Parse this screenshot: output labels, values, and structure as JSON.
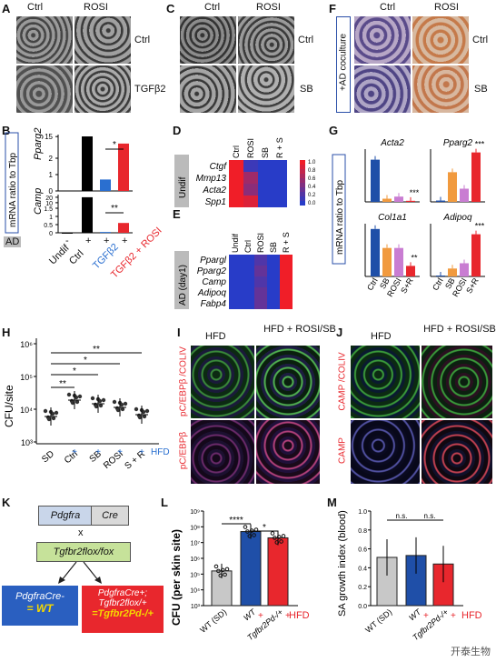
{
  "panel_letters": [
    "A",
    "B",
    "C",
    "D",
    "E",
    "F",
    "G",
    "H",
    "I",
    "J",
    "K",
    "L",
    "M"
  ],
  "A": {
    "col1": "Ctrl",
    "col2": "ROSI",
    "row1": "Ctrl",
    "row2": "TGFβ2"
  },
  "C": {
    "col1": "Ctrl",
    "col2": "ROSI",
    "row1": "Ctrl",
    "row2": "SB"
  },
  "F": {
    "col1": "Ctrl",
    "col2": "ROSI",
    "row1": "Ctrl",
    "row2": "SB",
    "side": "+AD coculture"
  },
  "B": {
    "ylabel": "mRNA ratio to Tbp",
    "gene1": "Pparg2",
    "gene2": "Camp",
    "ad": "AD",
    "undif": "Undif",
    "xcats": [
      "Undif",
      "Ctrl",
      "TGFβ2",
      "TGFβ2 + ROSI"
    ],
    "ad_signs": [
      "-",
      "+",
      "+",
      "+"
    ],
    "sig1": "*",
    "sig2": "**",
    "ticks1": [
      "0",
      "1",
      "2",
      "15"
    ],
    "ticks2": [
      "0",
      "0.5",
      "1",
      "1.5",
      "10",
      "20"
    ],
    "pparg2": [
      0.0,
      15.5,
      0.7,
      2.2
    ],
    "camp": [
      0.0,
      20.0,
      0.05,
      0.6
    ]
  },
  "D": {
    "side": "Undif",
    "cols": [
      "Ctrl",
      "ROSI",
      "SB",
      "R + S"
    ],
    "rows": [
      "Ctgf",
      "Mmp13",
      "Acta2",
      "Spp1"
    ],
    "scale": [
      "1.0",
      "0.8",
      "0.6",
      "0.4",
      "0.2",
      "0.0"
    ],
    "values": [
      [
        1.0,
        0.1,
        0.0,
        0.0
      ],
      [
        1.0,
        0.6,
        0.0,
        0.0
      ],
      [
        1.0,
        0.5,
        0.0,
        0.0
      ],
      [
        1.0,
        0.9,
        0.0,
        0.0
      ]
    ]
  },
  "E": {
    "side": "AD (day1)",
    "cols": [
      "Undif",
      "Ctrl",
      "ROSI",
      "SB",
      "R + S"
    ],
    "rows": [
      "Ppargl",
      "Pparg2",
      "Camp",
      "Adipoq",
      "Fabp4"
    ],
    "values": [
      [
        0.0,
        0.0,
        0.2,
        0.0,
        1.0
      ],
      [
        0.0,
        0.0,
        0.3,
        0.0,
        1.0
      ],
      [
        0.0,
        0.0,
        0.2,
        0.0,
        1.0
      ],
      [
        0.0,
        0.0,
        0.3,
        0.0,
        1.0
      ],
      [
        0.0,
        0.0,
        0.3,
        0.0,
        1.0
      ]
    ]
  },
  "G": {
    "ylabel": "mRNA ratio to Tbp",
    "genes": [
      "Acta2",
      "Pparg2",
      "Col1a1",
      "Adipoq"
    ],
    "xcats": [
      "Ctrl",
      "SB",
      "ROSI",
      "S+R"
    ],
    "sig": "***",
    "sig2": "**",
    "acta2": [
      40,
      3,
      5,
      1
    ],
    "pparg2": [
      0.02,
      0.45,
      0.2,
      0.75
    ],
    "col1a1": [
      0.45,
      0.27,
      0.27,
      0.1
    ],
    "adipoq": [
      0.1,
      1.5,
      2.5,
      8.0
    ],
    "colors": [
      "#1f4fa8",
      "#f19a3e",
      "#c97dd2",
      "#e8272d"
    ]
  },
  "H": {
    "ylabel": "CFU/site",
    "hfd": "HFD",
    "xcats": [
      "SD",
      "Ctrl",
      "SB",
      "ROSI",
      "S + R"
    ],
    "signs": [
      "+",
      "+",
      "+",
      "+"
    ],
    "sigs": [
      "**",
      "*",
      "*",
      "**"
    ],
    "ticks": [
      "10⁶",
      "10⁵",
      "10⁴",
      "10³"
    ]
  },
  "I": {
    "col1": "HFD",
    "col2": "HFD + ROSI/SB",
    "row1": "pC/EBPβ /COLIV",
    "row2": "pC/EBPβ"
  },
  "J": {
    "col1": "HFD",
    "col2": "HFD + ROSI/SB",
    "row1": "CAMP /COLIV",
    "row2": "CAMP"
  },
  "K": {
    "gene1": "Pdgfra",
    "gene2": "Cre",
    "x": "x",
    "gene3": "Tgfbr2flox/fox",
    "box1_line1": "PdgfraCre-",
    "box1_line2": "= WT",
    "box2_line1": "PdgfraCre+;",
    "box2_line2": "Tgfbr2flox/+",
    "box2_line3": "=Tgfbr2Pd-/+"
  },
  "L": {
    "ylabel": "CFU (per skin site)",
    "xcats": [
      "WT (SD)",
      "WT",
      "Tgfbr2Pd-/+"
    ],
    "hfd": "HFD",
    "signs": [
      "+",
      "+"
    ],
    "sigs": [
      "****",
      "*"
    ],
    "ticks": [
      "10⁹",
      "10⁸",
      "10⁷",
      "10⁶",
      "10⁵",
      "10⁴",
      "10³"
    ],
    "values": [
      5.2,
      7.7,
      7.3
    ],
    "colors": [
      "#c8c8c8",
      "#1f4fa8",
      "#e8272d"
    ]
  },
  "M": {
    "ylabel": "SA growth index (blood)",
    "xcats": [
      "WT (SD)",
      "WT",
      "Tgfbr2Pd-/+"
    ],
    "hfd": "HFD",
    "signs": [
      "+",
      "+"
    ],
    "sigs": [
      "n.s.",
      "n.s."
    ],
    "ticks": [
      "0.0",
      "0.2",
      "0.4",
      "0.6",
      "0.8",
      "1.0"
    ],
    "values": [
      0.51,
      0.53,
      0.44
    ],
    "colors": [
      "#c8c8c8",
      "#1f4fa8",
      "#e8272d"
    ]
  },
  "watermark": "开泰生物",
  "chart_data": [
    {
      "type": "bar",
      "title": "",
      "ylabel": "mRNA ratio to Tbp",
      "categories": [
        "Undif",
        "Ctrl",
        "TGFβ2",
        "TGFβ2 + ROSI"
      ],
      "series": [
        {
          "name": "Pparg2",
          "values": [
            0.0,
            15.5,
            0.7,
            2.2
          ]
        },
        {
          "name": "Camp",
          "values": [
            0.0,
            20.0,
            0.05,
            0.6
          ]
        }
      ]
    },
    {
      "type": "heatmap",
      "title": "",
      "rows": [
        "Ctgf",
        "Mmp13",
        "Acta2",
        "Spp1"
      ],
      "cols": [
        "Ctrl",
        "ROSI",
        "SB",
        "R + S"
      ],
      "values": [
        [
          1.0,
          0.1,
          0.0,
          0.0
        ],
        [
          1.0,
          0.6,
          0.0,
          0.0
        ],
        [
          1.0,
          0.5,
          0.0,
          0.0
        ],
        [
          1.0,
          0.9,
          0.0,
          0.0
        ]
      ]
    },
    {
      "type": "heatmap",
      "title": "",
      "rows": [
        "Ppargl",
        "Pparg2",
        "Camp",
        "Adipoq",
        "Fabp4"
      ],
      "cols": [
        "Undif",
        "Ctrl",
        "ROSI",
        "SB",
        "R + S"
      ],
      "values": [
        [
          0.0,
          0.0,
          0.2,
          0.0,
          1.0
        ],
        [
          0.0,
          0.0,
          0.3,
          0.0,
          1.0
        ],
        [
          0.0,
          0.0,
          0.2,
          0.0,
          1.0
        ],
        [
          0.0,
          0.0,
          0.3,
          0.0,
          1.0
        ],
        [
          0.0,
          0.0,
          0.3,
          0.0,
          1.0
        ]
      ]
    },
    {
      "type": "bar",
      "title": "",
      "ylabel": "mRNA ratio to Tbp",
      "categories": [
        "Ctrl",
        "SB",
        "ROSI",
        "S+R"
      ],
      "series": [
        {
          "name": "Acta2",
          "values": [
            40,
            3,
            5,
            1
          ]
        },
        {
          "name": "Pparg2",
          "values": [
            0.02,
            0.45,
            0.2,
            0.75
          ]
        },
        {
          "name": "Col1a1",
          "values": [
            0.45,
            0.27,
            0.27,
            0.1
          ]
        },
        {
          "name": "Adipoq",
          "values": [
            0.1,
            1.5,
            2.5,
            8.0
          ]
        }
      ]
    },
    {
      "type": "scatter",
      "title": "",
      "ylabel": "CFU/site",
      "categories": [
        "SD",
        "Ctrl",
        "SB",
        "ROSI",
        "S + R"
      ],
      "ylog": true
    },
    {
      "type": "bar",
      "title": "",
      "ylabel": "CFU (per skin site)",
      "categories": [
        "WT (SD)",
        "WT",
        "Tgfbr2Pd-/+"
      ],
      "log_values": [
        5.2,
        7.7,
        7.3
      ]
    },
    {
      "type": "bar",
      "title": "",
      "ylabel": "SA growth index (blood)",
      "categories": [
        "WT (SD)",
        "WT",
        "Tgfbr2Pd-/+"
      ],
      "values": [
        0.51,
        0.53,
        0.44
      ],
      "ylim": [
        0,
        1.0
      ]
    }
  ]
}
